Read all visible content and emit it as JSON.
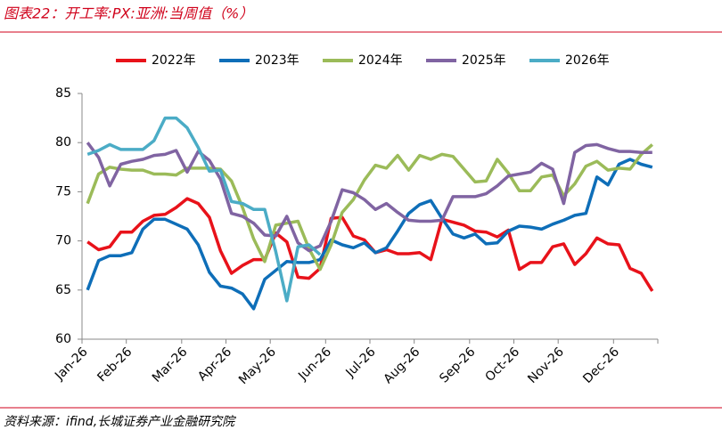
{
  "chart_data": {
    "type": "line",
    "title": "图表22：开工率:PX:亚洲:当周值（%）",
    "source": "资料来源：ifind,长城证券产业金融研究院",
    "categories": [
      "Jan-26",
      null,
      null,
      null,
      "Feb-26",
      null,
      null,
      null,
      null,
      "Mar-26",
      null,
      null,
      null,
      "Apr-26",
      null,
      null,
      null,
      "May-26",
      null,
      null,
      null,
      null,
      "Jun-26",
      null,
      null,
      null,
      "Jul-26",
      null,
      null,
      null,
      "Aug-26",
      null,
      null,
      null,
      null,
      "Sep-26",
      null,
      null,
      null,
      "Oct-26",
      null,
      null,
      null,
      "Nov-26",
      null,
      null,
      null,
      null,
      "Dec-26",
      null,
      null,
      null
    ],
    "series": [
      {
        "name": "2022年",
        "color": "#e8121a",
        "values": [
          69.9,
          69.1,
          69.4,
          70.9,
          70.9,
          72.0,
          72.6,
          72.7,
          73.4,
          74.3,
          73.8,
          72.4,
          69.0,
          66.7,
          67.5,
          68.1,
          68.1,
          70.8,
          69.9,
          66.3,
          66.2,
          67.2,
          72.3,
          72.4,
          70.5,
          70.1,
          68.8,
          69.1,
          68.7,
          68.7,
          68.8,
          68.1,
          72.2,
          71.9,
          71.6,
          71.0,
          70.9,
          70.4,
          71.1,
          67.1,
          67.8,
          67.8,
          69.4,
          69.7,
          67.6,
          68.7,
          70.3,
          69.7,
          69.6,
          67.2,
          66.7,
          64.9
        ]
      },
      {
        "name": "2023年",
        "color": "#0e6eb8",
        "values": [
          65.0,
          68.0,
          68.5,
          68.5,
          68.8,
          71.2,
          72.2,
          72.2,
          71.7,
          71.2,
          69.6,
          66.8,
          65.4,
          65.2,
          64.6,
          63.1,
          66.1,
          67.0,
          67.9,
          67.8,
          67.8,
          68.1,
          70.1,
          69.6,
          69.3,
          69.8,
          68.8,
          69.3,
          71.0,
          72.8,
          73.7,
          74.1,
          72.3,
          70.7,
          70.3,
          70.7,
          69.7,
          69.8,
          71.0,
          71.5,
          71.4,
          71.2,
          71.7,
          72.1,
          72.6,
          72.8,
          76.5,
          75.7,
          77.8,
          78.3,
          77.8,
          77.5
        ]
      },
      {
        "name": "2024年",
        "color": "#9bbb59",
        "values": [
          73.8,
          76.8,
          77.5,
          77.3,
          77.2,
          77.2,
          76.8,
          76.8,
          76.7,
          77.4,
          77.4,
          77.4,
          77.3,
          76.1,
          73.4,
          70.2,
          67.9,
          71.6,
          71.8,
          72.0,
          69.2,
          67.1,
          69.6,
          72.9,
          74.2,
          76.2,
          77.7,
          77.4,
          78.7,
          77.2,
          78.7,
          78.3,
          78.8,
          78.6,
          77.3,
          76.0,
          76.1,
          78.3,
          76.9,
          75.1,
          75.1,
          76.5,
          76.7,
          74.6,
          75.8,
          77.6,
          78.1,
          77.2,
          77.4,
          77.3,
          78.8,
          79.8
        ]
      },
      {
        "name": "2025年",
        "color": "#8064a2",
        "values": [
          80.0,
          78.5,
          75.6,
          77.8,
          78.1,
          78.3,
          78.7,
          78.8,
          79.2,
          77.0,
          79.1,
          78.2,
          76.3,
          72.8,
          72.5,
          71.8,
          70.6,
          70.5,
          72.5,
          69.8,
          69.0,
          69.5,
          72.0,
          75.2,
          74.9,
          74.2,
          73.2,
          73.8,
          72.9,
          72.1,
          72.0,
          72.0,
          72.1,
          74.5,
          74.5,
          74.5,
          74.8,
          75.6,
          76.6,
          76.8,
          77.0,
          77.9,
          77.3,
          73.8,
          79.0,
          79.7,
          79.8,
          79.4,
          79.1,
          79.1,
          79.0,
          79.0
        ]
      },
      {
        "name": "2026年",
        "color": "#4bacc6",
        "values": [
          78.8,
          79.2,
          79.8,
          79.3,
          79.3,
          79.3,
          80.2,
          82.5,
          82.5,
          81.5,
          79.5,
          77.1,
          77.2,
          74.0,
          73.8,
          73.2,
          73.2,
          68.9,
          63.9,
          69.4,
          69.6,
          68.6,
          null,
          null,
          null,
          null,
          null,
          null,
          null,
          null,
          null,
          null,
          null,
          null,
          null,
          null,
          null,
          null,
          null,
          null,
          null,
          null,
          null,
          null,
          null,
          null,
          null,
          null,
          null,
          null,
          null,
          null
        ]
      }
    ],
    "ylim": [
      60,
      85
    ],
    "yticks": [
      60,
      65,
      70,
      75,
      80,
      85
    ],
    "grid": false,
    "legend": "top"
  }
}
